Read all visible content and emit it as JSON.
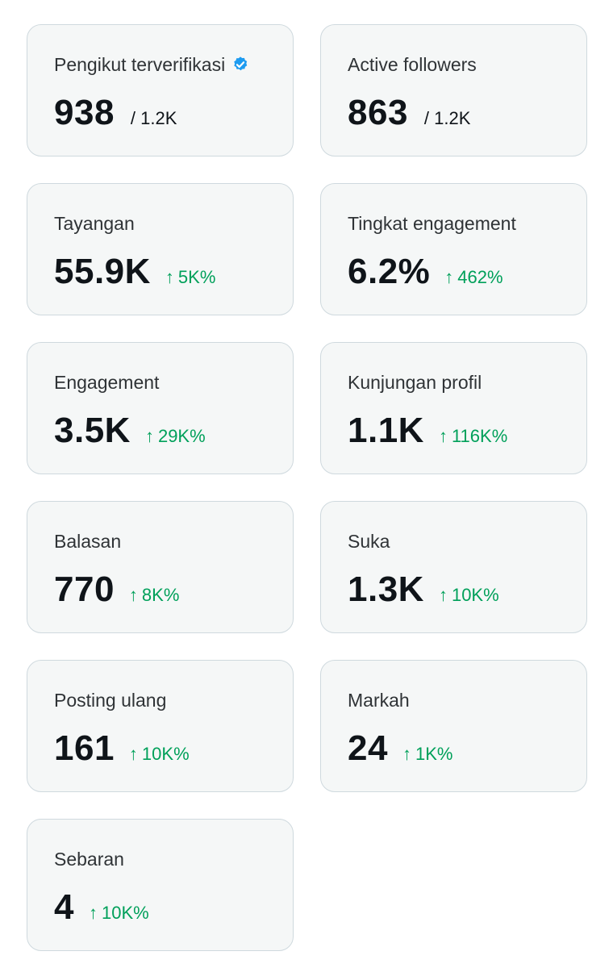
{
  "colors": {
    "card_background": "#f5f7f7",
    "card_border": "#cfd9de",
    "title_text": "#2f3336",
    "value_text": "#0f1419",
    "positive_change": "#00a05a",
    "verified_badge": "#1d9bf0"
  },
  "cards": [
    {
      "title": "Pengikut terverifikasi",
      "value": "938",
      "total": "/ 1.2K",
      "icon": "verified-badge-icon"
    },
    {
      "title": "Active followers",
      "value": "863",
      "total": "/ 1.2K"
    },
    {
      "title": "Tayangan",
      "value": "55.9K",
      "change": "5K%",
      "change_icon": "arrow-up-icon"
    },
    {
      "title": "Tingkat engagement",
      "value": "6.2%",
      "change": "462%",
      "change_icon": "arrow-up-icon"
    },
    {
      "title": "Engagement",
      "value": "3.5K",
      "change": "29K%",
      "change_icon": "arrow-up-icon"
    },
    {
      "title": "Kunjungan profil",
      "value": "1.1K",
      "change": "116K%",
      "change_icon": "arrow-up-icon"
    },
    {
      "title": "Balasan",
      "value": "770",
      "change": "8K%",
      "change_icon": "arrow-up-icon"
    },
    {
      "title": "Suka",
      "value": "1.3K",
      "change": "10K%",
      "change_icon": "arrow-up-icon"
    },
    {
      "title": "Posting ulang",
      "value": "161",
      "change": "10K%",
      "change_icon": "arrow-up-icon"
    },
    {
      "title": "Markah",
      "value": "24",
      "change": "1K%",
      "change_icon": "arrow-up-icon"
    },
    {
      "title": "Sebaran",
      "value": "4",
      "change": "10K%",
      "change_icon": "arrow-up-icon"
    }
  ]
}
